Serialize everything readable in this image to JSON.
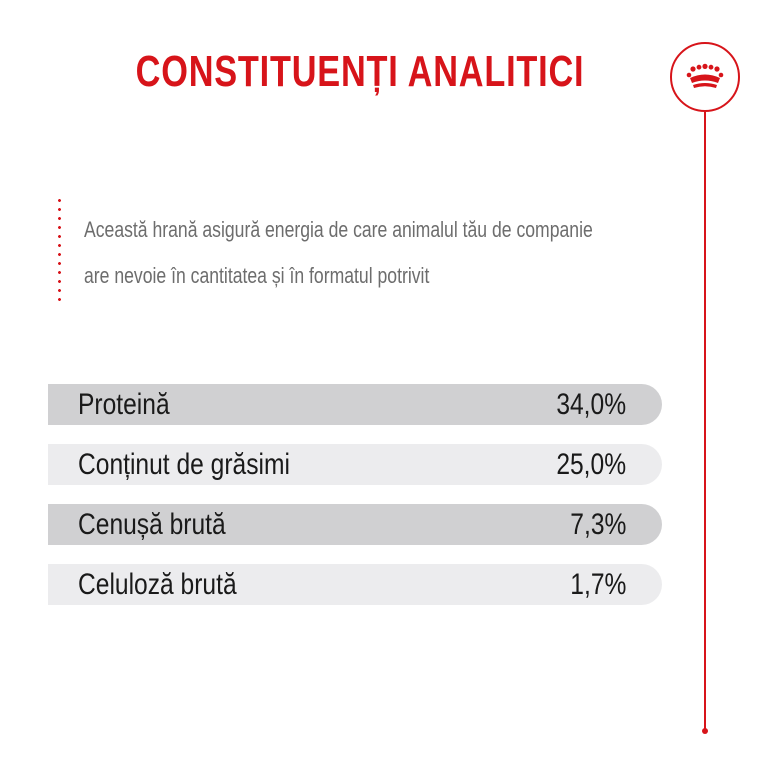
{
  "title": "CONSTITUENȚI ANALITICI",
  "logo": {
    "icon": "crown-icon",
    "color": "#d7141a"
  },
  "intro": {
    "line1": "Această hrană asigură energia de care animalul tău de companie",
    "line2": "are nevoie în cantitatea și în formatul potrivit"
  },
  "constituents": [
    {
      "label": "Proteină",
      "value": "34,0%"
    },
    {
      "label": "Conținut de grăsimi",
      "value": "25,0%"
    },
    {
      "label": "Cenușă brută",
      "value": "7,3%"
    },
    {
      "label": "Celuloză brută",
      "value": "1,7%"
    }
  ],
  "colors": {
    "accent": "#d7141a",
    "row_dark": "#d0d0d2",
    "row_light": "#ececee",
    "intro_text": "#6d6d6d"
  }
}
